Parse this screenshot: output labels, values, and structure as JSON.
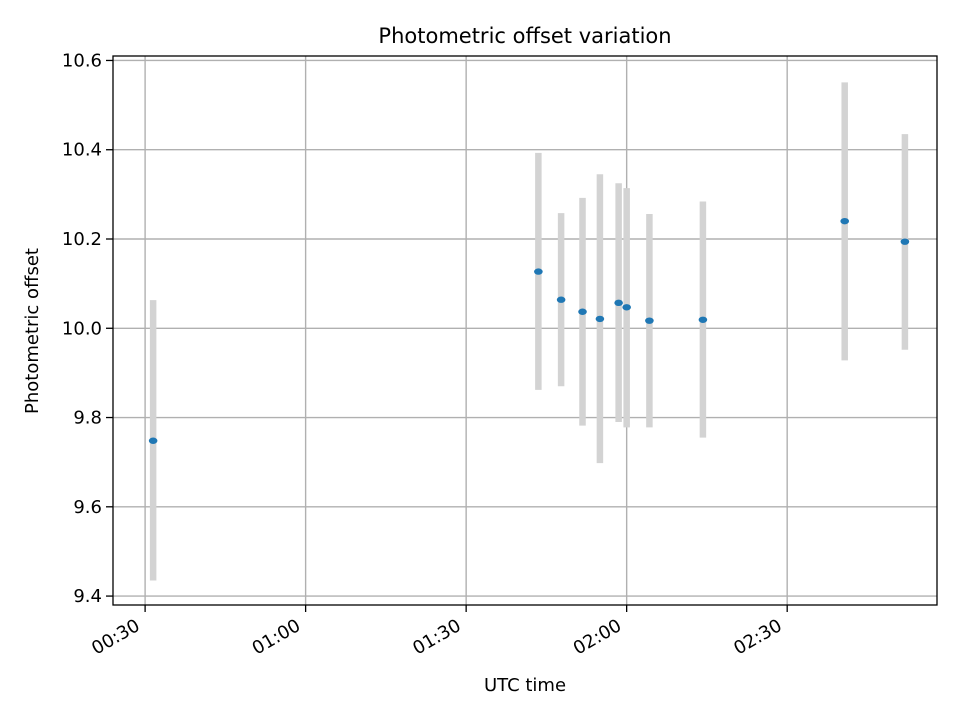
{
  "chart_data": {
    "type": "scatter",
    "title": "Photometric offset variation",
    "xlabel": "UTC time",
    "ylabel": "Photometric offset",
    "x_axis_kind": "time (HH:MM, UTC)",
    "xlim": [
      "00:24",
      "02:58"
    ],
    "ylim": [
      9.38,
      10.61
    ],
    "grid": true,
    "legend": "none",
    "x_ticks": [
      "00:30",
      "01:00",
      "01:30",
      "02:00",
      "02:30"
    ],
    "y_ticks": [
      "9.4",
      "9.6",
      "9.8",
      "10.0",
      "10.2",
      "10.4",
      "10.6"
    ],
    "colors": {
      "marker": "#1f77b4",
      "errorbar": "#d3d3d3",
      "grid": "#b0b0b0",
      "axes": "#000000"
    },
    "series": [
      {
        "points": [
          {
            "x": "00:31:30",
            "y": 9.748,
            "ylow": 9.435,
            "yhigh": 10.063
          },
          {
            "x": "01:43:30",
            "y": 10.127,
            "ylow": 9.862,
            "yhigh": 10.393
          },
          {
            "x": "01:47:45",
            "y": 10.064,
            "ylow": 9.87,
            "yhigh": 10.258
          },
          {
            "x": "01:51:45",
            "y": 10.037,
            "ylow": 9.782,
            "yhigh": 10.292
          },
          {
            "x": "01:55:00",
            "y": 10.021,
            "ylow": 9.698,
            "yhigh": 10.345
          },
          {
            "x": "01:58:30",
            "y": 10.057,
            "ylow": 9.79,
            "yhigh": 10.325
          },
          {
            "x": "02:00:00",
            "y": 10.047,
            "ylow": 9.778,
            "yhigh": 10.314
          },
          {
            "x": "02:04:15",
            "y": 10.017,
            "ylow": 9.778,
            "yhigh": 10.256
          },
          {
            "x": "02:14:15",
            "y": 10.019,
            "ylow": 9.755,
            "yhigh": 10.284
          },
          {
            "x": "02:40:45",
            "y": 10.24,
            "ylow": 9.928,
            "yhigh": 10.551
          },
          {
            "x": "02:52:00",
            "y": 10.194,
            "ylow": 9.952,
            "yhigh": 10.435
          }
        ]
      }
    ]
  }
}
